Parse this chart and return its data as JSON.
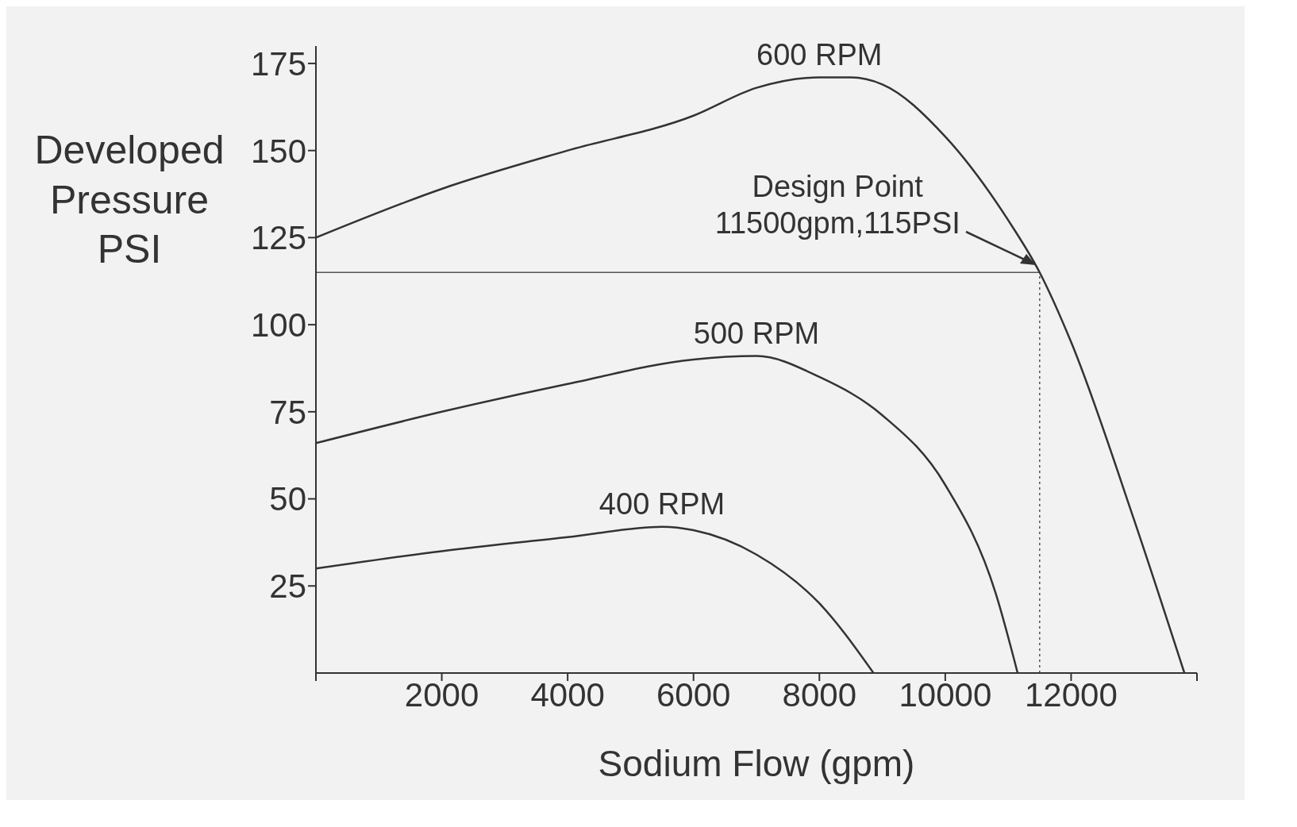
{
  "chart_data": {
    "type": "line",
    "xlabel": "Sodium Flow (gpm)",
    "ylabel": "Developed Pressure PSI",
    "xlim": [
      0,
      14000
    ],
    "xticks": [
      {
        "value": 0,
        "label": null
      },
      2000,
      4000,
      6000,
      8000,
      10000,
      12000,
      {
        "value": 14000,
        "label": null
      }
    ],
    "ylim": [
      0,
      180
    ],
    "yticks": [
      25,
      50,
      75,
      100,
      125,
      150,
      175
    ],
    "grid": false,
    "legend": false,
    "marker": "none",
    "line_style": "solid",
    "series": [
      {
        "name": "600 RPM",
        "color": "#333333",
        "x": [
          0,
          2000,
          4000,
          6000,
          7000,
          8000,
          8500,
          9000,
          10000,
          11000,
          11500,
          12000,
          13000,
          13800
        ],
        "values": [
          125,
          139,
          150,
          160,
          168,
          171,
          171,
          169,
          154,
          130,
          115,
          95,
          44,
          0
        ]
      },
      {
        "name": "500 RPM",
        "color": "#333333",
        "x": [
          0,
          2000,
          4000,
          6000,
          7000,
          8000,
          9000,
          10000,
          10800,
          11150
        ],
        "values": [
          66,
          75,
          83,
          90,
          91,
          85,
          74,
          54,
          23,
          0
        ]
      },
      {
        "name": "400 RPM",
        "color": "#333333",
        "x": [
          0,
          2000,
          4000,
          5500,
          6000,
          7000,
          8000,
          8860
        ],
        "values": [
          30,
          35,
          39,
          42,
          41,
          34,
          20,
          0
        ]
      }
    ],
    "ref_lines": [
      {
        "axis": "y",
        "value": 115,
        "line_style": "solid",
        "color": "#555555"
      },
      {
        "axis": "x",
        "value": 11500,
        "line_style": "dotted",
        "color": "#555555"
      }
    ],
    "annotations": [
      {
        "text": "Design Point\n11500gpm,115PSI",
        "x": 11500,
        "y": 115
      }
    ]
  }
}
